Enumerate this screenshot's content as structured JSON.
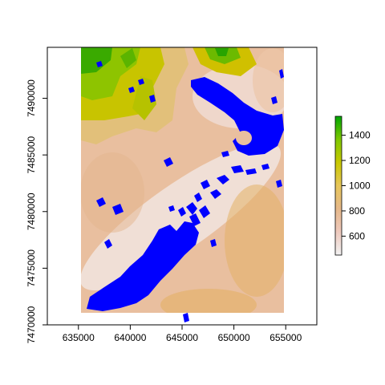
{
  "map": {
    "x_ticks": [
      "635000",
      "640000",
      "645000",
      "650000",
      "655000"
    ],
    "y_ticks": [
      "7470000",
      "7475000",
      "7480000",
      "7485000",
      "7490000"
    ],
    "xlim": [
      632000,
      658000
    ],
    "ylim": [
      7470000,
      7494500
    ],
    "raster_extent": {
      "xmin": 637000,
      "xmax": 655000,
      "ymin": 7471000,
      "ymax": 7494500
    }
  },
  "legend": {
    "labels": [
      "1400",
      "1200",
      "1000",
      "800",
      "600"
    ],
    "values": [
      1400,
      1200,
      1000,
      800,
      600
    ],
    "range": [
      450,
      1550
    ],
    "colors": [
      "#f2f2f2",
      "#eec9bd",
      "#e6b88a",
      "#e7c65a",
      "#c8c800",
      "#7ec800",
      "#00a600"
    ]
  },
  "colors": {
    "water": "#0000ff",
    "frame": "#000000"
  }
}
